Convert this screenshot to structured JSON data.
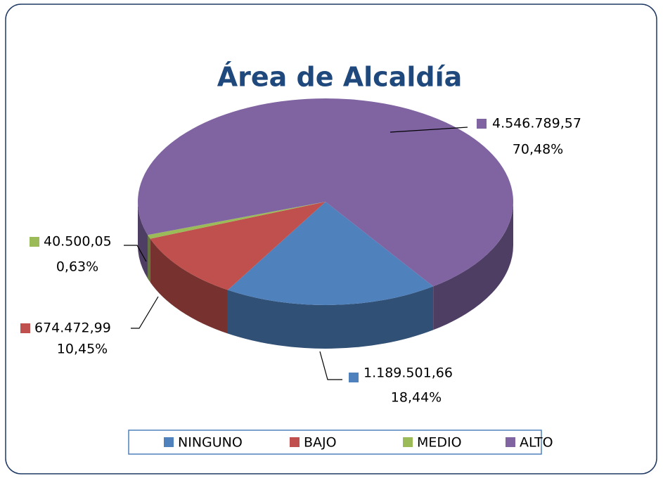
{
  "chart_data": {
    "type": "pie3d",
    "title": "Área de Alcaldía",
    "categories": [
      "NINGUNO",
      "BAJO",
      "MEDIO",
      "ALTO"
    ],
    "values": [
      1189501.66,
      674472.99,
      40500.05,
      4546789.57
    ],
    "value_labels": [
      "1.189.501,66",
      "674.472,99",
      "40.500,05",
      "4.546.789,57"
    ],
    "percent_labels": [
      "18,44%",
      "10,45%",
      "0,63%",
      "70,48%"
    ],
    "colors": [
      "#4f81bd",
      "#c0504d",
      "#9bbb59",
      "#8064a2"
    ],
    "legend": "bottom"
  }
}
